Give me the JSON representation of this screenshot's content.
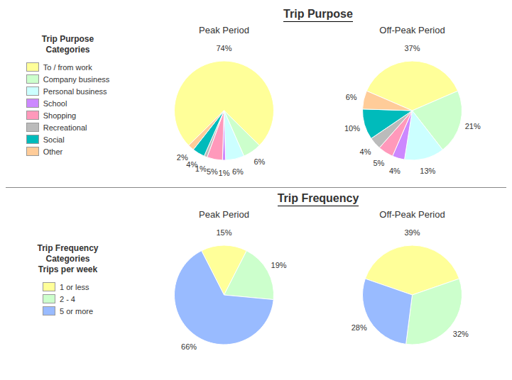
{
  "chart_data": [
    {
      "type": "pie",
      "title": "Trip Purpose",
      "subtitle": "Peak Period",
      "annotations": [
        "Trip Purpose",
        "Categories"
      ],
      "legend": "left",
      "categories": [
        "To / from work",
        "Company business",
        "Personal business",
        "School",
        "Shopping",
        "Recreational",
        "Social",
        "Other"
      ],
      "values": [
        74,
        6,
        6,
        1,
        5,
        1,
        4,
        2
      ],
      "value_labels": [
        "74%",
        "6%",
        "6%",
        "1%",
        "5%",
        "1%",
        "4%",
        "2%"
      ],
      "colors": [
        "#FFFF99",
        "#CCFFCC",
        "#CCFFFF",
        "#CC88FF",
        "#FF99BB",
        "#BBBBBB",
        "#00BBBB",
        "#FFCC99"
      ],
      "data_labels": true
    },
    {
      "type": "pie",
      "subtitle": "Off-Peak Period",
      "categories": [
        "To / from work",
        "Company business",
        "Personal business",
        "School",
        "Shopping",
        "Recreational",
        "Social",
        "Other"
      ],
      "values": [
        37,
        21,
        13,
        4,
        5,
        4,
        10,
        6
      ],
      "value_labels": [
        "37%",
        "21%",
        "13%",
        "4%",
        "5%",
        "4%",
        "10%",
        "6%"
      ],
      "colors": [
        "#FFFF99",
        "#CCFFCC",
        "#CCFFFF",
        "#CC88FF",
        "#FF99BB",
        "#BBBBBB",
        "#00BBBB",
        "#FFCC99"
      ],
      "data_labels": true
    },
    {
      "type": "pie",
      "title": "Trip Frequency",
      "subtitle": "Peak Period",
      "annotations": [
        "Trip Frequency",
        "Categories",
        "Trips per week"
      ],
      "legend": "left",
      "categories": [
        "1 or less",
        "2 - 4",
        "5 or more"
      ],
      "values": [
        15,
        19,
        66
      ],
      "value_labels": [
        "15%",
        "19%",
        "66%"
      ],
      "colors": [
        "#FFFF99",
        "#CCFFCC",
        "#99BBFF"
      ],
      "data_labels": true
    },
    {
      "type": "pie",
      "subtitle": "Off-Peak Period",
      "categories": [
        "1 or less",
        "2 - 4",
        "5 or more"
      ],
      "values": [
        39,
        32,
        28
      ],
      "value_labels": [
        "39%",
        "32%",
        "28%"
      ],
      "colors": [
        "#FFFF99",
        "#CCFFCC",
        "#99BBFF"
      ],
      "data_labels": true
    }
  ]
}
